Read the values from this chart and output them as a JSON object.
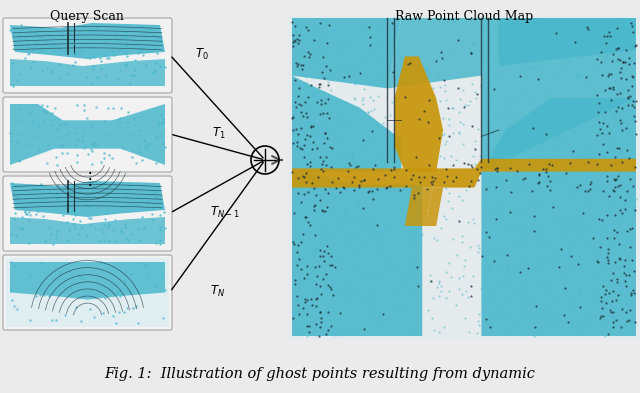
{
  "fig_width": 6.4,
  "fig_height": 3.93,
  "dpi": 100,
  "bg_color": "#ebebeb",
  "title_left": "Query Scan",
  "title_right": "Raw Point Cloud Map",
  "caption": "Fig. 1:  Illustration of ghost points resulting from dynamic",
  "caption_fontsize": 10.5,
  "title_fontsize": 9.0,
  "label_fontsize": 8.5,
  "teal": "#4ab8cc",
  "teal_dark": "#2a8fa8",
  "white_bg": "#f5f5f5",
  "dark": "#1c2e38",
  "yellow": "#c8960a",
  "yellow2": "#d4a012",
  "panel_bg": "#f0f0f0",
  "panel_border": "#888888",
  "right_panel_bg": "#e8eef0"
}
